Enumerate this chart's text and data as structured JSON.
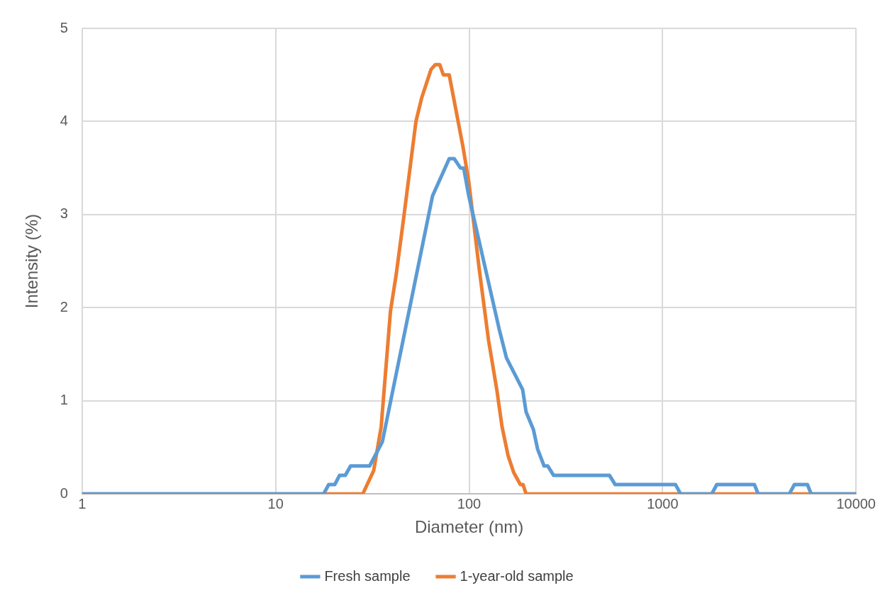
{
  "chart_data": {
    "type": "line",
    "xlabel": "Diameter (nm)",
    "ylabel": "Intensity (%)",
    "log": "x",
    "grid": true,
    "legend": "bottom",
    "line_style": "solid",
    "xlim": [
      1,
      10000
    ],
    "xticks": [
      1,
      10,
      100,
      1000,
      10000
    ],
    "ylim": [
      0,
      5
    ],
    "yticks": [
      0,
      1,
      2,
      3,
      4,
      5
    ],
    "series": [
      {
        "name": "Fresh sample",
        "color": "#5b9bd5",
        "x": [
          1,
          17.7,
          18.8,
          20.2,
          21.4,
          22.9,
          24.4,
          30.6,
          35.6,
          64.7,
          78.9,
          83.8,
          90.2,
          93.7,
          99.6,
          143,
          156,
          189,
          197,
          215,
          226,
          244,
          255,
          273,
          531,
          569,
          1167,
          1238,
          1795,
          1906,
          2985,
          3118,
          4519,
          4800,
          5610,
          5860,
          10000
        ],
        "values": [
          0,
          0,
          0.1,
          0.1,
          0.2,
          0.2,
          0.3,
          0.3,
          0.56,
          3.2,
          3.6,
          3.6,
          3.5,
          3.5,
          3.2,
          1.77,
          1.46,
          1.12,
          0.88,
          0.69,
          0.48,
          0.3,
          0.3,
          0.2,
          0.2,
          0.1,
          0.1,
          0,
          0,
          0.1,
          0.1,
          0,
          0,
          0.1,
          0.1,
          0,
          0
        ]
      },
      {
        "name": "1-year-old sample",
        "color": "#ed7d31",
        "x": [
          1,
          28.2,
          32.1,
          35.1,
          39.2,
          42,
          45.8,
          53.1,
          56.8,
          63.6,
          66.9,
          70.5,
          73.6,
          78.9,
          92.9,
          99.6,
          113,
          126,
          139,
          148,
          159,
          170,
          184,
          190,
          197,
          10000
        ],
        "values": [
          0,
          0,
          0.25,
          0.72,
          1.96,
          2.36,
          2.95,
          4,
          4.25,
          4.56,
          4.61,
          4.61,
          4.5,
          4.5,
          3.73,
          3.35,
          2.4,
          1.65,
          1.12,
          0.72,
          0.41,
          0.23,
          0.1,
          0.1,
          0,
          0
        ]
      }
    ]
  }
}
